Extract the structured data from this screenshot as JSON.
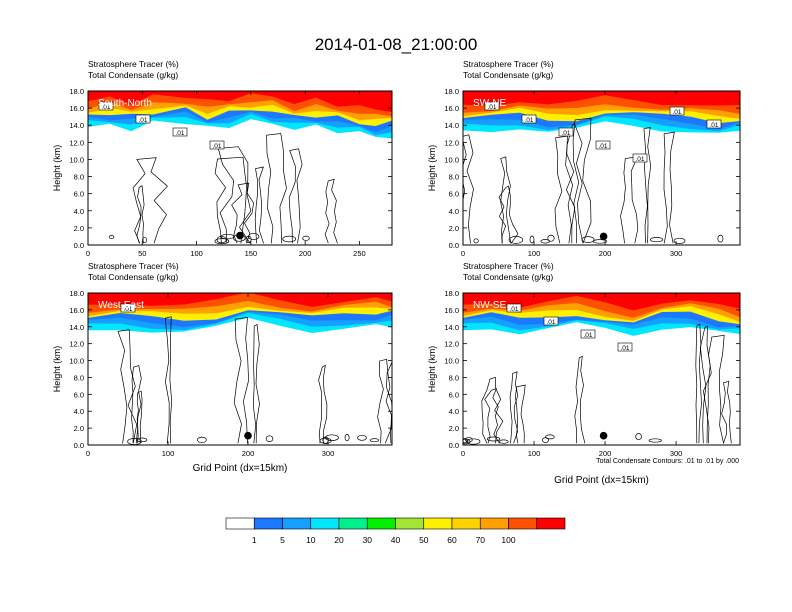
{
  "title": "2014-01-08_21:00:00",
  "footnote": "Total Condensate Contours: .01 to .01 by .000",
  "xlabel": "Grid Point (dx=15km)",
  "ylabel": "Height (km)",
  "colorbar": {
    "levels": [
      "1",
      "5",
      "10",
      "20",
      "30",
      "40",
      "50",
      "60",
      "70",
      "100"
    ],
    "colors": [
      "#ffffff",
      "#1e78ff",
      "#14a0ff",
      "#00e6ff",
      "#00f08c",
      "#00f000",
      "#a0e632",
      "#fff000",
      "#ffd200",
      "#ffa000",
      "#ff5000",
      "#ff0000"
    ]
  },
  "chart_data": [
    {
      "type": "contour",
      "panel": "South-North",
      "title_lines": [
        "Stratosphere Tracer   (%)",
        "Total Condensate   (g/kg)"
      ],
      "ylabel": "Height (km)",
      "xlabel": "",
      "xlim": [
        0,
        280
      ],
      "ylim": [
        0,
        18
      ],
      "xticks": [
        0,
        50,
        100,
        150,
        200,
        250
      ],
      "yticks": [
        "0.0",
        "2.0",
        "4.0",
        "6.0",
        "8.0",
        "10.0",
        "12.0",
        "14.0",
        "16.0",
        "18.0"
      ],
      "tropopause_km": [
        [
          0,
          15.2
        ],
        [
          20,
          15.4
        ],
        [
          40,
          15.0
        ],
        [
          60,
          15.6
        ],
        [
          90,
          15.8
        ],
        [
          110,
          15.0
        ],
        [
          130,
          15.4
        ],
        [
          150,
          15.9
        ],
        [
          170,
          15.6
        ],
        [
          190,
          15.0
        ],
        [
          210,
          15.2
        ],
        [
          230,
          14.8
        ],
        [
          250,
          14.4
        ],
        [
          265,
          14.0
        ],
        [
          280,
          14.2
        ]
      ],
      "contour_labels": [
        ".01",
        ".01",
        ".01",
        ".01"
      ],
      "marker": {
        "x": 140,
        "y": 1.1
      }
    },
    {
      "type": "contour",
      "panel": "SW-NE",
      "title_lines": [
        "Stratosphere Tracer   (%)",
        "Total Condensate   (g/kg)"
      ],
      "ylabel": "Height (km)",
      "xlabel": "",
      "xlim": [
        0,
        390
      ],
      "ylim": [
        0,
        18
      ],
      "xticks": [
        0,
        100,
        200,
        300
      ],
      "yticks": [
        "0.0",
        "2.0",
        "4.0",
        "6.0",
        "8.0",
        "10.0",
        "12.0",
        "14.0",
        "16.0",
        "18.0"
      ],
      "tropopause_km": [
        [
          0,
          14.8
        ],
        [
          40,
          14.9
        ],
        [
          80,
          15.2
        ],
        [
          120,
          14.6
        ],
        [
          160,
          14.8
        ],
        [
          200,
          15.6
        ],
        [
          240,
          15.4
        ],
        [
          280,
          15.0
        ],
        [
          320,
          14.8
        ],
        [
          360,
          14.4
        ],
        [
          390,
          14.6
        ]
      ],
      "contour_labels": [
        ".01",
        ".01",
        ".01",
        ".01",
        ".01",
        ".01",
        ".01"
      ],
      "marker": {
        "x": 198,
        "y": 1.0
      }
    },
    {
      "type": "contour",
      "panel": "West-East",
      "title_lines": [
        "Stratosphere Tracer   (%)",
        "Total Condensate   (g/kg)"
      ],
      "ylabel": "Height (km)",
      "xlabel": "Grid Point (dx=15km)",
      "xlim": [
        0,
        380
      ],
      "ylim": [
        0,
        18
      ],
      "xticks": [
        0,
        100,
        200,
        300
      ],
      "yticks": [
        "0.0",
        "2.0",
        "4.0",
        "6.0",
        "8.0",
        "10.0",
        "12.0",
        "14.0",
        "16.0",
        "18.0"
      ],
      "tropopause_km": [
        [
          0,
          15.0
        ],
        [
          40,
          15.3
        ],
        [
          80,
          15.0
        ],
        [
          120,
          14.8
        ],
        [
          160,
          15.2
        ],
        [
          200,
          16.2
        ],
        [
          240,
          15.6
        ],
        [
          280,
          15.0
        ],
        [
          320,
          15.4
        ],
        [
          360,
          15.6
        ],
        [
          380,
          15.6
        ]
      ],
      "contour_labels": [
        ".01"
      ],
      "marker": {
        "x": 200,
        "y": 1.1
      }
    },
    {
      "type": "contour",
      "panel": "NW-SE",
      "title_lines": [
        "Stratosphere Tracer   (%)",
        "Total Condensate   (g/kg)"
      ],
      "ylabel": "Height (km)",
      "xlabel": "Grid Point (dx=15km)",
      "xlim": [
        0,
        390
      ],
      "ylim": [
        0,
        18
      ],
      "xticks": [
        0,
        100,
        200,
        300
      ],
      "yticks": [
        "0.0",
        "2.0",
        "4.0",
        "6.0",
        "8.0",
        "10.0",
        "12.0",
        "14.0",
        "16.0",
        "18.0"
      ],
      "tropopause_km": [
        [
          0,
          15.0
        ],
        [
          40,
          15.4
        ],
        [
          80,
          14.8
        ],
        [
          120,
          15.2
        ],
        [
          160,
          15.6
        ],
        [
          200,
          15.0
        ],
        [
          240,
          14.4
        ],
        [
          280,
          15.4
        ],
        [
          320,
          15.6
        ],
        [
          360,
          14.8
        ],
        [
          390,
          14.4
        ]
      ],
      "contour_labels": [
        ".01",
        ".01",
        ".01",
        ".01"
      ],
      "marker": {
        "x": 198,
        "y": 1.1
      }
    }
  ]
}
